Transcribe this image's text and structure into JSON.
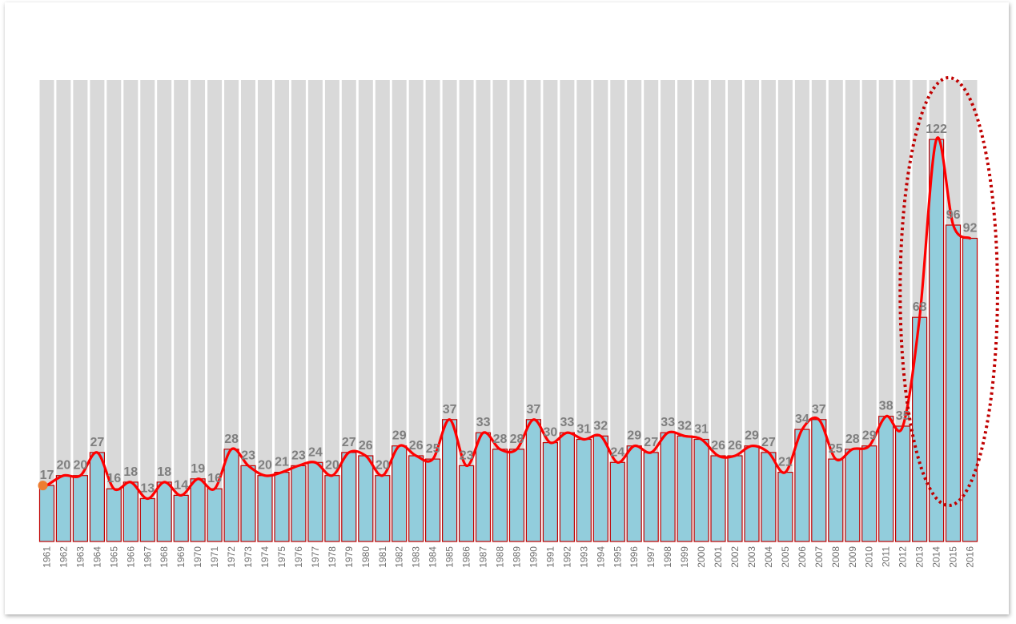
{
  "chart_data": {
    "type": "bar",
    "title": "",
    "xlabel": "",
    "ylabel": "",
    "ylim": [
      0,
      140
    ],
    "grid": false,
    "legend": "none",
    "categories": [
      "1961",
      "1962",
      "1963",
      "1964",
      "1965",
      "1966",
      "1967",
      "1968",
      "1969",
      "1970",
      "1971",
      "1972",
      "1973",
      "1974",
      "1975",
      "1976",
      "1977",
      "1978",
      "1979",
      "1980",
      "1981",
      "1982",
      "1983",
      "1984",
      "1985",
      "1986",
      "1987",
      "1988",
      "1989",
      "1990",
      "1991",
      "1992",
      "1993",
      "1994",
      "1995",
      "1996",
      "1997",
      "1998",
      "1999",
      "2000",
      "2001",
      "2002",
      "2003",
      "2004",
      "2005",
      "2006",
      "2007",
      "2008",
      "2009",
      "2010",
      "2011",
      "2012",
      "2013",
      "2014",
      "2015",
      "2016"
    ],
    "values": [
      17,
      20,
      20,
      27,
      16,
      18,
      13,
      18,
      14,
      19,
      16,
      28,
      23,
      20,
      21,
      23,
      24,
      20,
      27,
      26,
      20,
      29,
      26,
      25,
      37,
      23,
      33,
      28,
      28,
      37,
      30,
      33,
      31,
      32,
      24,
      29,
      27,
      33,
      32,
      31,
      26,
      26,
      29,
      27,
      21,
      34,
      37,
      25,
      28,
      29,
      38,
      35,
      68,
      122,
      96,
      92
    ],
    "highlight": {
      "shape": "dotted-ellipse",
      "range": [
        "2013",
        "2016"
      ]
    },
    "colors": {
      "bar_fill": "#92cddc",
      "bar_stroke": "#c00000",
      "line": "#ff0000",
      "background_bars": "#d9d9d9",
      "ellipse": "#c00000",
      "start_marker": "#ed7d31",
      "data_labels": "#7f7f7f",
      "tick_labels": "#6f6f6f"
    }
  }
}
